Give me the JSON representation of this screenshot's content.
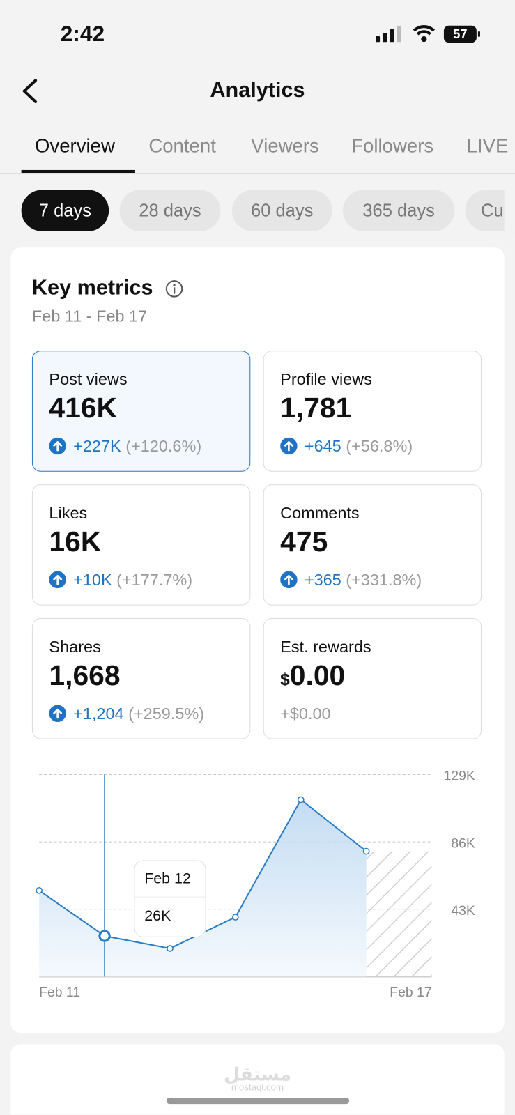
{
  "status_bar": {
    "time": "2:42",
    "battery": "57"
  },
  "header": {
    "title": "Analytics"
  },
  "tabs": [
    "Overview",
    "Content",
    "Viewers",
    "Followers",
    "LIVE"
  ],
  "ranges": [
    "7 days",
    "28 days",
    "60 days",
    "365 days",
    "Cu"
  ],
  "key_metrics": {
    "title": "Key metrics",
    "date_range": "Feb 11 - Feb 17",
    "metrics": [
      {
        "label": "Post views",
        "value": "416K",
        "change": "+227K",
        "percent": "(+120.6%)"
      },
      {
        "label": "Profile views",
        "value": "1,781",
        "change": "+645",
        "percent": "(+56.8%)"
      },
      {
        "label": "Likes",
        "value": "16K",
        "change": "+10K",
        "percent": "(+177.7%)"
      },
      {
        "label": "Comments",
        "value": "475",
        "change": "+365",
        "percent": "(+331.8%)"
      },
      {
        "label": "Shares",
        "value": "1,668",
        "change": "+1,204",
        "percent": "(+259.5%)"
      },
      {
        "label": "Est. rewards",
        "currency": "$",
        "value": "0.00",
        "change": "+$0.00"
      }
    ]
  },
  "chart_data": {
    "type": "line",
    "categories": [
      "Feb 11",
      "Feb 12",
      null,
      null,
      null,
      null,
      "Feb 17"
    ],
    "values": [
      55000,
      26000,
      18000,
      38000,
      113000,
      80000,
      null
    ],
    "value_labels": [
      null,
      "26K",
      null,
      null,
      null,
      null,
      null
    ],
    "color": "#2a7cc4",
    "ylim": [
      0,
      129000
    ],
    "yticks": [
      {
        "value": 43000,
        "label": "43K"
      },
      {
        "value": 86000,
        "label": "86K"
      },
      {
        "value": 129000,
        "label": "129K"
      }
    ],
    "grid": true
  },
  "watermark": {
    "arabic": "مستقل",
    "latin": "mostaql.com"
  }
}
